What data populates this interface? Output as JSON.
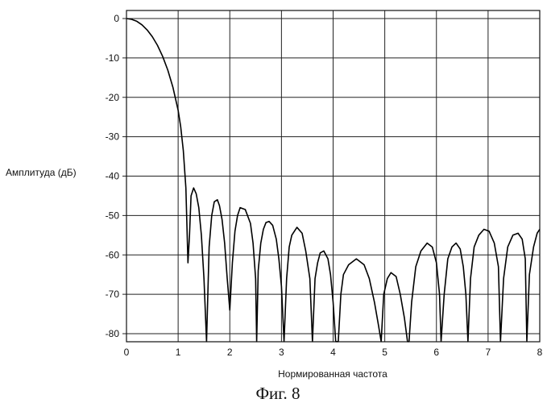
{
  "chart_data": {
    "type": "line",
    "title": "",
    "caption": "Фиг. 8",
    "xlabel": "Нормированная частота",
    "ylabel": "Амплитуда (дБ)",
    "xlim": [
      0,
      8
    ],
    "ylim": [
      -82,
      2
    ],
    "xticks": [
      0,
      1,
      2,
      3,
      4,
      5,
      6,
      7,
      8
    ],
    "yticks": [
      0,
      -10,
      -20,
      -30,
      -40,
      -50,
      -60,
      -70,
      -80
    ],
    "grid": true,
    "legend": "none",
    "line_color": "#000000",
    "series": [
      {
        "x": [
          0,
          0.1,
          0.2,
          0.3,
          0.4,
          0.5,
          0.6,
          0.7,
          0.8,
          0.9,
          1.0,
          1.05,
          1.1,
          1.15,
          1.19,
          1.22,
          1.25,
          1.3,
          1.35,
          1.4,
          1.45,
          1.5,
          1.55,
          1.55,
          1.6,
          1.65,
          1.7,
          1.76,
          1.8,
          1.85,
          1.9,
          1.95,
          2.0,
          2.0,
          2.05,
          2.1,
          2.15,
          2.2,
          2.3,
          2.4,
          2.45,
          2.5,
          2.52,
          2.52,
          2.55,
          2.6,
          2.65,
          2.7,
          2.76,
          2.83,
          2.9,
          2.95,
          3.0,
          3.05,
          3.05,
          3.1,
          3.15,
          3.2,
          3.3,
          3.4,
          3.47,
          3.55,
          3.6,
          3.6,
          3.65,
          3.7,
          3.75,
          3.82,
          3.9,
          3.95,
          4.0,
          4.05,
          4.1,
          4.1,
          4.15,
          4.2,
          4.3,
          4.45,
          4.6,
          4.7,
          4.8,
          4.88,
          4.93,
          4.93,
          4.98,
          5.05,
          5.12,
          5.22,
          5.3,
          5.38,
          5.44,
          5.47,
          5.47,
          5.52,
          5.6,
          5.7,
          5.82,
          5.92,
          6.0,
          6.06,
          6.09,
          6.09,
          6.15,
          6.22,
          6.3,
          6.38,
          6.46,
          6.52,
          6.57,
          6.61,
          6.61,
          6.66,
          6.73,
          6.82,
          6.92,
          7.02,
          7.12,
          7.2,
          7.24,
          7.24,
          7.3,
          7.38,
          7.48,
          7.58,
          7.66,
          7.72,
          7.75,
          7.75,
          7.8,
          7.88,
          7.95,
          8.0
        ],
        "y": [
          0,
          -0.2,
          -0.7,
          -1.6,
          -2.9,
          -4.6,
          -6.8,
          -9.6,
          -13.1,
          -17.5,
          -23.3,
          -27.5,
          -33.5,
          -43,
          -62,
          -55,
          -45,
          -43,
          -44.5,
          -48,
          -55,
          -66,
          -82,
          -82,
          -58,
          -50,
          -46.5,
          -46,
          -47.5,
          -51,
          -57,
          -66,
          -74,
          -74,
          -62,
          -54,
          -50,
          -48,
          -48.5,
          -52,
          -57,
          -66,
          -82,
          -82,
          -64,
          -57,
          -53.5,
          -51.8,
          -51.5,
          -52.5,
          -56,
          -61,
          -68,
          -82,
          -82,
          -66,
          -58,
          -55,
          -53,
          -54.5,
          -59,
          -66,
          -82,
          -82,
          -66,
          -62,
          -59.5,
          -59,
          -61,
          -65,
          -72,
          -82,
          -82,
          -82,
          -70,
          -65,
          -62.5,
          -61,
          -62.5,
          -66,
          -72,
          -78,
          -82,
          -82,
          -70,
          -66,
          -64.5,
          -65.5,
          -70,
          -76,
          -82,
          -82,
          -82,
          -72,
          -63,
          -59,
          -57,
          -58,
          -62,
          -70,
          -82,
          -82,
          -70,
          -61,
          -58,
          -57,
          -58.5,
          -63,
          -70,
          -82,
          -82,
          -66,
          -58,
          -55,
          -53.5,
          -54,
          -57,
          -63,
          -82,
          -82,
          -66,
          -58,
          -55,
          -54.5,
          -56,
          -61,
          -82,
          -82,
          -65,
          -58,
          -54.5,
          -53.5
        ]
      }
    ]
  }
}
